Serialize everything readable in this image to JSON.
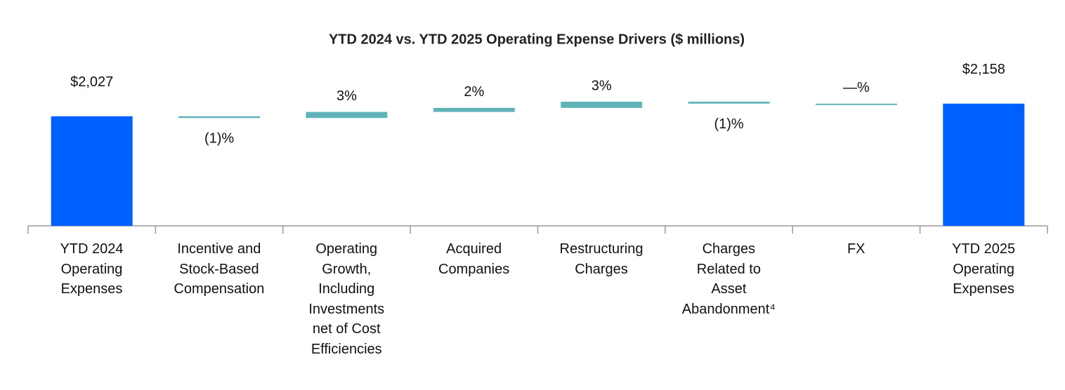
{
  "chart_data": {
    "type": "waterfall",
    "title": "YTD 2024 vs. YTD 2025 Operating Expense Drivers ($ millions)",
    "categories": [
      "YTD 2024\nOperating\nExpenses",
      "Incentive and\nStock-Based\nCompensation",
      "Operating\nGrowth,\nIncluding\nInvestments\nnet of Cost\nEfficiencies",
      "Acquired\nCompanies",
      "Restructuring\nCharges",
      "Charges\nRelated to\nAsset\nAbandonment⁴",
      "FX",
      "YTD 2025\nOperating\nExpenses"
    ],
    "values": [
      2027,
      -18,
      63,
      42,
      64,
      -20,
      0,
      2158
    ],
    "value_labels": [
      "$2,027",
      "(1)%",
      "3%",
      "2%",
      "3%",
      "(1)%",
      "—%",
      "$2,158"
    ],
    "is_total": [
      true,
      false,
      false,
      false,
      false,
      false,
      false,
      true
    ],
    "total_color": "#0060ff",
    "change_color": "#5fb3b8",
    "ylim": [
      890,
      2400
    ]
  }
}
